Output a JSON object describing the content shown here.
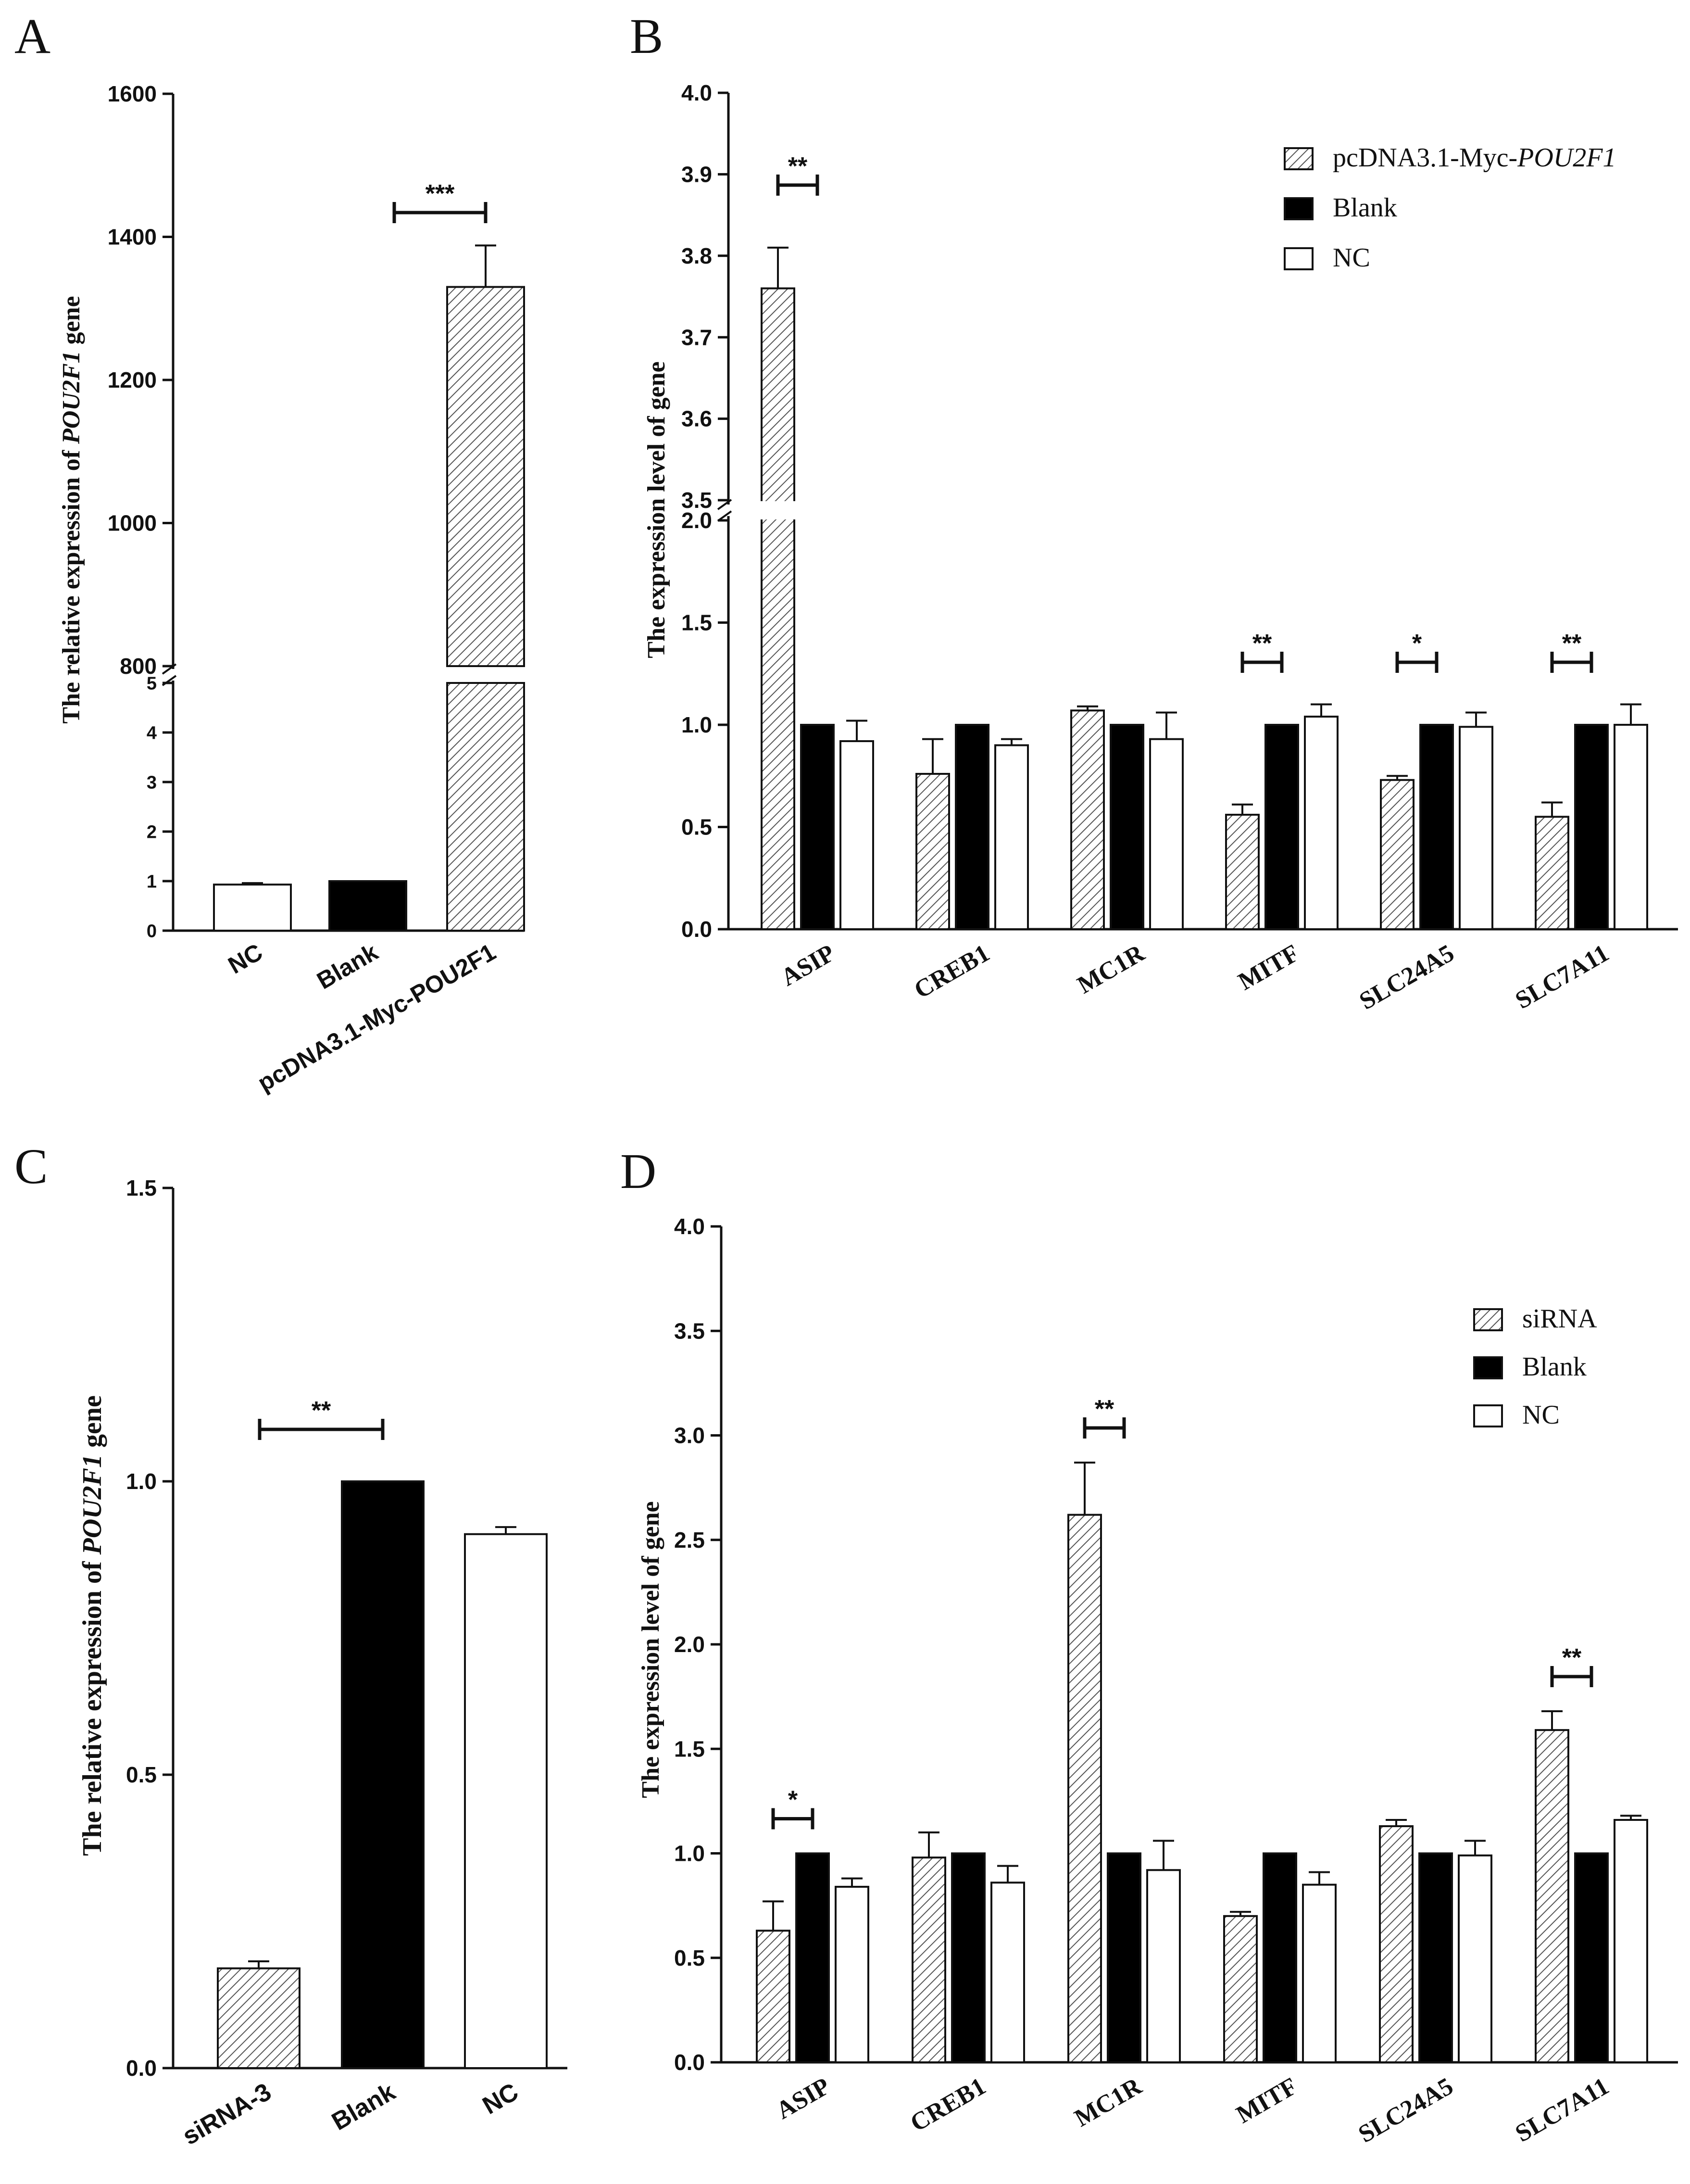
{
  "figure": {
    "panels": [
      "A",
      "B",
      "C",
      "D"
    ]
  },
  "chart_data": [
    {
      "panel": "A",
      "type": "bar",
      "title": "",
      "xlabel": "",
      "ylabel_prefix": "The relative expression of ",
      "ylabel_gene": "POU2F1",
      "ylabel_suffix": " gene",
      "categories": [
        "NC",
        "Blank",
        "pcDNA3.1-Myc-POU2F1"
      ],
      "values": [
        0.93,
        1.0,
        1330
      ],
      "errors": [
        0.03,
        0.0,
        58
      ],
      "fills": [
        "white",
        "black",
        "hatch"
      ],
      "axis_break": true,
      "lower_range": [
        0,
        5
      ],
      "lower_ticks": [
        "0",
        "1",
        "2",
        "3",
        "4",
        "5"
      ],
      "upper_range": [
        800,
        1600
      ],
      "upper_ticks": [
        "800",
        "1000",
        "1200",
        "1400",
        "1600"
      ],
      "significance": [
        {
          "label": "***",
          "from": 1,
          "to": 2
        }
      ]
    },
    {
      "panel": "B",
      "type": "bar",
      "title": "",
      "xlabel": "",
      "ylabel": "The expression level of gene",
      "categories": [
        "ASIP",
        "CREB1",
        "MC1R",
        "MITF",
        "SLC24A5",
        "SLC7A11"
      ],
      "series": [
        {
          "name_prefix": "pcDNA3.1-Myc-",
          "name_italic": "POU2F1",
          "fill": "hatch",
          "values": [
            3.76,
            0.76,
            1.07,
            0.56,
            0.73,
            0.55
          ],
          "errors": [
            0.05,
            0.17,
            0.02,
            0.05,
            0.02,
            0.07
          ]
        },
        {
          "name": "Blank",
          "fill": "black",
          "values": [
            1.0,
            1.0,
            1.0,
            1.0,
            1.0,
            1.0
          ],
          "errors": [
            0,
            0,
            0,
            0,
            0,
            0
          ]
        },
        {
          "name": "NC",
          "fill": "white",
          "values": [
            0.92,
            0.9,
            0.93,
            1.04,
            0.99,
            1.0
          ],
          "errors": [
            0.1,
            0.03,
            0.13,
            0.06,
            0.07,
            0.1
          ]
        }
      ],
      "axis_break": true,
      "lower_range": [
        0,
        2.0
      ],
      "lower_ticks": [
        "0.0",
        "0.5",
        "1.0",
        "1.5",
        "2.0"
      ],
      "upper_range": [
        3.5,
        4.0
      ],
      "upper_ticks": [
        "3.5",
        "3.6",
        "3.7",
        "3.8",
        "3.9",
        "4.0"
      ],
      "legend_position": "top-right",
      "significance": [
        {
          "category": 0,
          "label": "**"
        },
        {
          "category": 3,
          "label": "**"
        },
        {
          "category": 4,
          "label": "*"
        },
        {
          "category": 5,
          "label": "**"
        }
      ]
    },
    {
      "panel": "C",
      "type": "bar",
      "title": "",
      "xlabel": "",
      "ylabel_prefix": "The relative expression of ",
      "ylabel_gene": "POU2F1",
      "ylabel_suffix": " gene",
      "categories": [
        "siRNA-3",
        "Blank",
        "NC"
      ],
      "values": [
        0.17,
        1.0,
        0.91
      ],
      "errors": [
        0.012,
        0.0,
        0.012
      ],
      "fills": [
        "hatch",
        "black",
        "white"
      ],
      "ylim": [
        0,
        1.5
      ],
      "ticks": [
        "0.0",
        "0.5",
        "1.0",
        "1.5"
      ],
      "significance": [
        {
          "label": "**",
          "from": 0,
          "to": 1
        }
      ]
    },
    {
      "panel": "D",
      "type": "bar",
      "title": "",
      "xlabel": "",
      "ylabel": "The expression level of gene",
      "categories": [
        "ASIP",
        "CREB1",
        "MC1R",
        "MITF",
        "SLC24A5",
        "SLC7A11"
      ],
      "series": [
        {
          "name": "siRNA",
          "fill": "hatch",
          "values": [
            0.63,
            0.98,
            2.62,
            0.7,
            1.13,
            1.59
          ],
          "errors": [
            0.14,
            0.12,
            0.25,
            0.02,
            0.03,
            0.09
          ]
        },
        {
          "name": "Blank",
          "fill": "black",
          "values": [
            1.0,
            1.0,
            1.0,
            1.0,
            1.0,
            1.0
          ],
          "errors": [
            0,
            0,
            0,
            0,
            0,
            0
          ]
        },
        {
          "name": "NC",
          "fill": "white",
          "values": [
            0.84,
            0.86,
            0.92,
            0.85,
            0.99,
            1.16
          ],
          "errors": [
            0.04,
            0.08,
            0.14,
            0.06,
            0.07,
            0.02
          ]
        }
      ],
      "ylim": [
        0,
        4.0
      ],
      "ticks": [
        "0.0",
        "0.5",
        "1.0",
        "1.5",
        "2.0",
        "2.5",
        "3.0",
        "3.5",
        "4.0"
      ],
      "legend_position": "top-right",
      "significance": [
        {
          "category": 0,
          "label": "*"
        },
        {
          "category": 2,
          "label": "**"
        },
        {
          "category": 5,
          "label": "**"
        }
      ]
    }
  ]
}
